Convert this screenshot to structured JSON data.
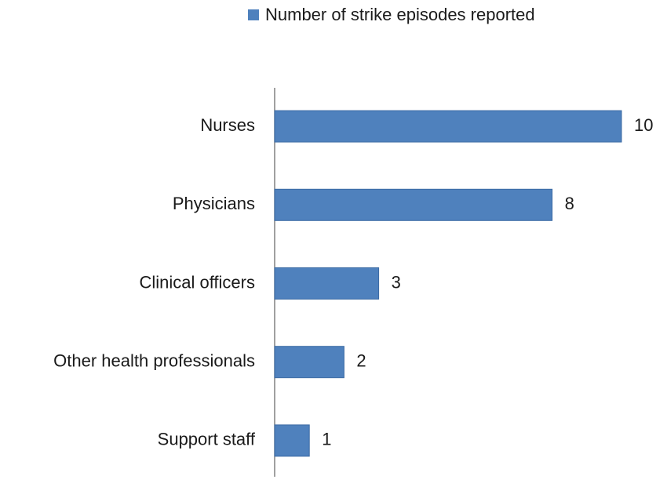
{
  "chart_data": {
    "type": "bar",
    "orientation": "horizontal",
    "categories": [
      "Nurses",
      "Physicians",
      "Clinical officers",
      "Other health professionals",
      "Support staff"
    ],
    "series": [
      {
        "name": "Number of strike episodes reported",
        "color": "#4f81bd",
        "values": [
          10,
          8,
          3,
          2,
          1
        ]
      }
    ],
    "legend": "top"
  }
}
